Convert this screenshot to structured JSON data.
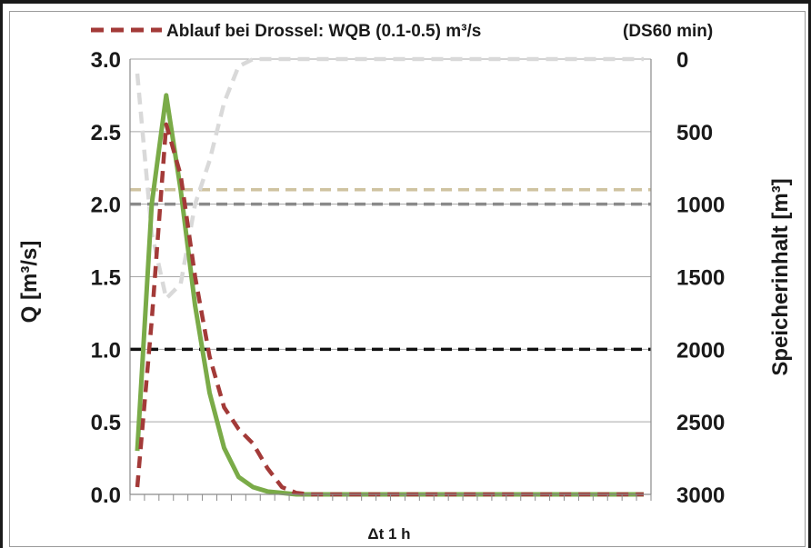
{
  "chart_data": {
    "type": "line",
    "legend": {
      "label": "Ablauf bei Drossel: WQB (0.1-0.5) m³/s",
      "note": "(DS60 min)",
      "placement": "top"
    },
    "xlabel": "Δt 1 h",
    "ylabel_left": "Q [m³/s]",
    "ylabel_right": "Speicherinhalt [m³]",
    "ylim_left": [
      0,
      3
    ],
    "yticks_left": [
      "0.0",
      "0.5",
      "1.0",
      "1.5",
      "2.0",
      "2.5",
      "3.0"
    ],
    "ylim_right_inverted": [
      0,
      3000
    ],
    "yticks_right": [
      "3000",
      "2500",
      "2000",
      "1500",
      "1000",
      "500",
      "0"
    ],
    "x_count": 36,
    "grid": true,
    "series": [
      {
        "key": "inflow",
        "style": "solid",
        "color": "#7aab48",
        "values": [
          0.3,
          2.0,
          2.75,
          2.1,
          1.3,
          0.7,
          0.32,
          0.12,
          0.05,
          0.02,
          0.01,
          0,
          0,
          0,
          0,
          0,
          0,
          0,
          0,
          0,
          0,
          0,
          0,
          0,
          0,
          0,
          0,
          0,
          0,
          0,
          0,
          0,
          0,
          0,
          0,
          0
        ]
      },
      {
        "key": "outflow",
        "style": "dashed",
        "color": "#a33a38",
        "values": [
          0.05,
          1.2,
          2.55,
          2.2,
          1.5,
          0.95,
          0.6,
          0.45,
          0.35,
          0.18,
          0.05,
          0.01,
          0,
          0,
          0,
          0,
          0,
          0,
          0,
          0,
          0,
          0,
          0,
          0,
          0,
          0,
          0,
          0,
          0,
          0,
          0,
          0,
          0,
          0,
          0,
          0
        ]
      },
      {
        "key": "storage",
        "style": "dashed",
        "color": "#d9d9d9",
        "axis": "right",
        "values": [
          100,
          1200,
          1650,
          1550,
          1000,
          700,
          300,
          50,
          0,
          0,
          0,
          0,
          0,
          0,
          0,
          0,
          0,
          0,
          0,
          0,
          0,
          0,
          0,
          0,
          0,
          0,
          0,
          0,
          0,
          0,
          0,
          0,
          0,
          0,
          0,
          0
        ]
      }
    ],
    "reference_lines": [
      {
        "value": 2.1,
        "color": "#cfc3a0",
        "style": "dashed"
      },
      {
        "value": 2.0,
        "color": "#8a8a8a",
        "style": "dashed"
      },
      {
        "value": 1.0,
        "color": "#111111",
        "style": "dashed"
      }
    ]
  }
}
